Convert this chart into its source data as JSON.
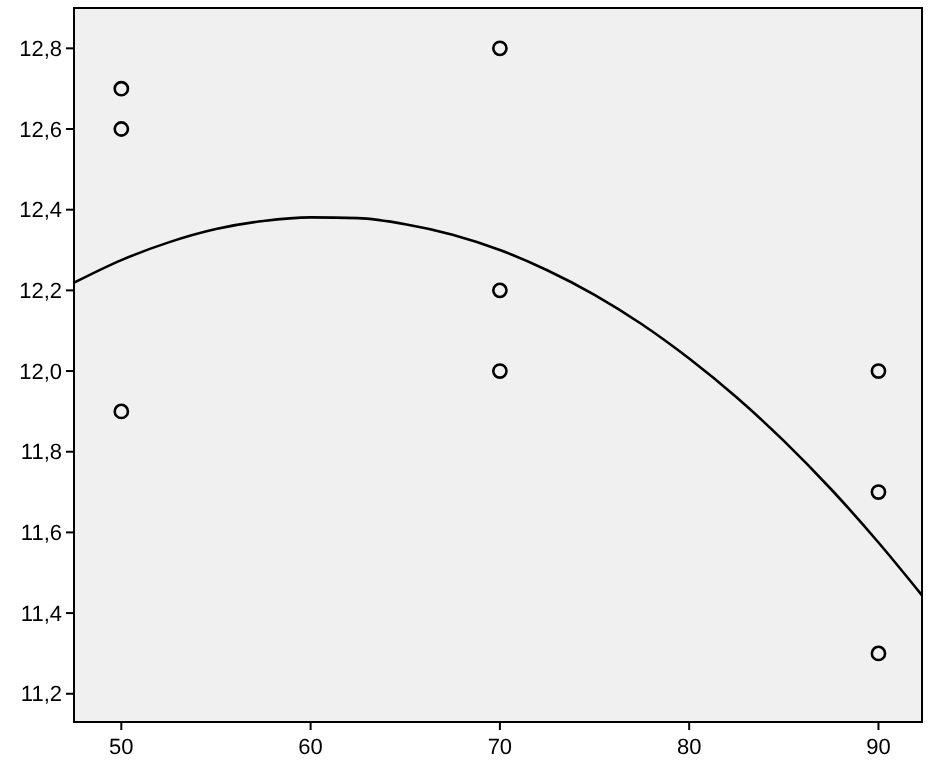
{
  "chart_data": {
    "type": "scatter",
    "xlim": [
      47.5,
      92.3
    ],
    "ylim": [
      11.13,
      12.9
    ],
    "xticks": [
      50,
      60,
      70,
      80,
      90
    ],
    "yticks": [
      {
        "value": 11.2,
        "label": "11,2"
      },
      {
        "value": 11.4,
        "label": "11,4"
      },
      {
        "value": 11.6,
        "label": "11,6"
      },
      {
        "value": 11.8,
        "label": "11,8"
      },
      {
        "value": 12.0,
        "label": "12,0"
      },
      {
        "value": 12.2,
        "label": "12,2"
      },
      {
        "value": 12.4,
        "label": "12,4"
      },
      {
        "value": 12.6,
        "label": "12,6"
      },
      {
        "value": 12.8,
        "label": "12,8"
      }
    ],
    "grid": false,
    "marker": "circle",
    "series": [
      {
        "color": "#000000",
        "x": [
          50,
          50,
          50,
          70,
          70,
          70,
          90,
          90,
          90
        ],
        "values": [
          12.7,
          12.6,
          11.9,
          12.8,
          12.2,
          12.0,
          12.0,
          11.7,
          11.3
        ]
      },
      {
        "type": "line",
        "color": "#000000",
        "line_style": "solid",
        "marker": "none",
        "x": [
          47.5,
          50,
          52.5,
          55,
          57.5,
          60,
          62.5,
          65,
          67.5,
          70,
          72.5,
          75,
          77.5,
          80,
          82.5,
          85,
          87.5,
          90,
          92.3
        ],
        "values": [
          12.219,
          12.275,
          12.319,
          12.352,
          12.372,
          12.381,
          12.379,
          12.364,
          12.338,
          12.3,
          12.25,
          12.189,
          12.116,
          12.031,
          11.935,
          11.827,
          11.707,
          11.575,
          11.444
        ]
      }
    ]
  }
}
